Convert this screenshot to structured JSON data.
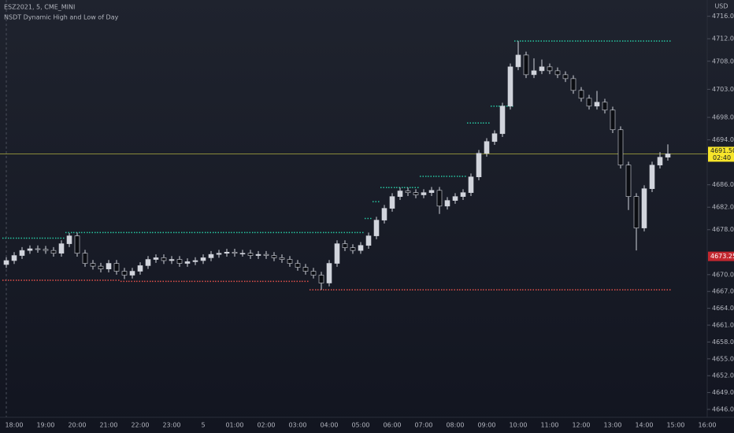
{
  "chart_data": {
    "type": "candlestick",
    "title": "ESZ2021, 5, CME_MINI",
    "subtitle": "NSDT Dynamic High and Low of Day",
    "y_axis_label": "USD",
    "up_color": "#d1d4dc",
    "down_color": "#0b0d12",
    "categories": [
      null,
      "18:00",
      null,
      null,
      null,
      "19:00",
      null,
      null,
      null,
      "20:00",
      null,
      null,
      null,
      "21:00",
      null,
      null,
      null,
      "22:00",
      null,
      null,
      null,
      "23:00",
      null,
      null,
      null,
      "5",
      null,
      null,
      null,
      "01:00",
      null,
      null,
      null,
      "02:00",
      null,
      null,
      null,
      "03:00",
      null,
      null,
      null,
      "04:00",
      null,
      null,
      null,
      "05:00",
      null,
      null,
      null,
      "06:00",
      null,
      null,
      null,
      "07:00",
      null,
      null,
      null,
      "08:00",
      null,
      null,
      null,
      "09:00",
      null,
      null,
      null,
      "10:00",
      null,
      null,
      null,
      "11:00",
      null,
      null,
      null,
      "12:00",
      null,
      null,
      null,
      "13:00",
      null,
      null,
      null,
      "14:00",
      null,
      null,
      null,
      "15:00",
      null,
      null,
      null,
      "16:00"
    ],
    "open": [
      4671.8,
      4672.5,
      4673.4,
      4674.3,
      4674.6,
      4674.5,
      4674.3,
      4673.8,
      4675.5,
      4676.9,
      4673.8,
      4672,
      4671.5,
      4671,
      4672,
      4670.6,
      4669.9,
      4670.6,
      4671.6,
      4672.7,
      4673,
      4672.5,
      4672.7,
      4672,
      4672.3,
      4672.5,
      4673,
      4673.6,
      4673.8,
      4674,
      4673.8,
      4673.8,
      4673.4,
      4673.6,
      4673.4,
      4673,
      4672.7,
      4672,
      4671.3,
      4670.6,
      4669.9,
      4668.5,
      4672,
      4675.5,
      4674.8,
      4674.3,
      4675.2,
      4676.9,
      4679.7,
      4681.8,
      4683.9,
      4684.9,
      4684.6,
      4684.2,
      4684.6,
      4685,
      4682.2,
      4683.2,
      4683.9,
      4684.6,
      4687.4,
      4691.6,
      4693.7,
      4695.1,
      4700,
      4707,
      4709.1,
      4705.6,
      4706.3,
      4707,
      4706.3,
      4705.6,
      4704.9,
      4702.8,
      4701.4,
      4700,
      4700.7,
      4699.3,
      4695.8,
      4689.5,
      4683.9,
      4678.3,
      4685.3,
      4689.5,
      4690.9,
      null,
      null,
      null,
      null,
      null
    ],
    "high": [
      4673.1,
      4674,
      4674.9,
      4675.2,
      4675.2,
      4675.1,
      4674.9,
      4676.1,
      4677.4,
      4677.5,
      4674.4,
      4672.6,
      4672.1,
      4672.6,
      4672.6,
      4671.2,
      4671.2,
      4672.2,
      4673.3,
      4673.6,
      4673.6,
      4673.3,
      4673.3,
      4672.9,
      4673.1,
      4673.6,
      4674.2,
      4674.4,
      4674.6,
      4674.6,
      4674.4,
      4674.4,
      4674.2,
      4674.2,
      4674,
      4673.6,
      4673.3,
      4672.6,
      4671.9,
      4671.2,
      4670.5,
      4672.6,
      4676.1,
      4676.1,
      4675.4,
      4675.8,
      4677.5,
      4680.3,
      4682.4,
      4684.5,
      4685.5,
      4685.5,
      4685.2,
      4685.2,
      4685.6,
      4685.6,
      4683.8,
      4684.5,
      4685.2,
      4688,
      4692.2,
      4694.3,
      4695.7,
      4700.6,
      4707.6,
      4711.6,
      4709.7,
      4708.5,
      4708.3,
      4707.6,
      4706.9,
      4706.2,
      4705.5,
      4703.4,
      4702,
      4702.7,
      4701.3,
      4699.9,
      4696.4,
      4690.1,
      4684.5,
      4685.9,
      4690.1,
      4691.8,
      4693.2,
      null,
      null,
      null,
      null,
      null
    ],
    "low": [
      4671.2,
      4671.9,
      4672.8,
      4673.7,
      4673.9,
      4673.7,
      4673.2,
      4673.2,
      4674.9,
      4673.2,
      4671.4,
      4670.9,
      4670.4,
      4670.4,
      4670,
      4669.2,
      4669.3,
      4670,
      4671,
      4672.1,
      4671.9,
      4671.9,
      4671.4,
      4671.4,
      4671.7,
      4671.9,
      4672.4,
      4673,
      4673.2,
      4673.2,
      4673.2,
      4672.8,
      4672.8,
      4672.8,
      4672.4,
      4672.1,
      4671.4,
      4670.7,
      4670,
      4669.3,
      4667.3,
      4667.9,
      4671.4,
      4674.2,
      4673.7,
      4673.7,
      4674.6,
      4676.3,
      4679.1,
      4681.2,
      4683.3,
      4684,
      4683.6,
      4683.6,
      4684,
      4680.8,
      4681.6,
      4682.6,
      4683.3,
      4684,
      4686.8,
      4691,
      4693.1,
      4694.5,
      4699.4,
      4706.4,
      4705,
      4705,
      4705.7,
      4705.7,
      4705,
      4704.3,
      4702.2,
      4700.8,
      4699.4,
      4699.4,
      4698.7,
      4695.2,
      4688.9,
      4681.5,
      4674.3,
      4677.7,
      4684.7,
      4688.9,
      4690.3,
      null,
      null,
      null,
      null,
      null
    ],
    "close": [
      4672.5,
      4673.4,
      4674.3,
      4674.6,
      4674.5,
      4674.3,
      4673.8,
      4675.5,
      4676.9,
      4673.8,
      4672,
      4671.5,
      4671,
      4672,
      4670.6,
      4669.9,
      4670.6,
      4671.6,
      4672.7,
      4673,
      4672.5,
      4672.7,
      4672,
      4672.3,
      4672.5,
      4673,
      4673.6,
      4673.8,
      4674,
      4673.8,
      4673.8,
      4673.4,
      4673.6,
      4673.4,
      4673,
      4672.7,
      4672,
      4671.3,
      4670.6,
      4669.9,
      4668.5,
      4672,
      4675.5,
      4674.8,
      4674.3,
      4675.2,
      4676.9,
      4679.7,
      4681.8,
      4683.9,
      4684.9,
      4684.6,
      4684.2,
      4684.6,
      4685,
      4682.2,
      4683.2,
      4683.9,
      4684.6,
      4687.4,
      4691.6,
      4693.7,
      4695.1,
      4700,
      4707,
      4709.1,
      4705.6,
      4706.3,
      4707,
      4706.3,
      4705.6,
      4704.9,
      4702.8,
      4701.4,
      4700,
      4700.7,
      4699.3,
      4695.8,
      4689.5,
      4683.9,
      4678.3,
      4685.3,
      4689.5,
      4690.9,
      4691.5,
      null,
      null,
      null,
      null,
      null
    ],
    "series": [
      {
        "color": "#26c6a0",
        "values": [
          4676.5,
          4676.5,
          4676.5,
          4676.5,
          4676.5,
          4676.5,
          4676.5,
          4676.5,
          4677.5,
          4677.5,
          4677.5,
          4677.5,
          4677.5,
          4677.5,
          4677.5,
          4677.5,
          4677.5,
          4677.5,
          4677.5,
          4677.5,
          4677.5,
          4677.5,
          4677.5,
          4677.5,
          4677.5,
          4677.5,
          4677.5,
          4677.5,
          4677.5,
          4677.5,
          4677.5,
          4677.5,
          4677.5,
          4677.5,
          4677.5,
          4677.5,
          4677.5,
          4677.5,
          4677.5,
          4677.5,
          4677.5,
          4677.5,
          4677.5,
          4677.5,
          4677.5,
          4677.5,
          4680,
          4683,
          4685.5,
          4685.5,
          4685.5,
          4685.5,
          4685.5,
          4687.5,
          4687.5,
          4687.5,
          4687.5,
          4687.5,
          4687.5,
          4697,
          4697,
          4697,
          4700,
          4700,
          4700,
          4711.6,
          4711.6,
          4711.6,
          4711.6,
          4711.6,
          4711.6,
          4711.6,
          4711.6,
          4711.6,
          4711.6,
          4711.6,
          4711.6,
          4711.6,
          4711.6,
          4711.6,
          4711.6,
          4711.6,
          4711.6,
          4711.6,
          4711.6,
          null,
          null,
          null,
          null,
          null
        ]
      },
      {
        "color": "#e0504a",
        "values": [
          4669,
          4669,
          4669,
          4669,
          4669,
          4669,
          4669,
          4669,
          4669,
          4669,
          4669,
          4669,
          4669,
          4669,
          4669,
          4668.8,
          4668.8,
          4668.8,
          4668.8,
          4668.8,
          4668.8,
          4668.8,
          4668.8,
          4668.8,
          4668.8,
          4668.8,
          4668.8,
          4668.8,
          4668.8,
          4668.8,
          4668.8,
          4668.8,
          4668.8,
          4668.8,
          4668.8,
          4668.8,
          4668.8,
          4668.8,
          4668.8,
          4667.3,
          4667.3,
          4667.3,
          4667.3,
          4667.3,
          4667.3,
          4667.3,
          4667.3,
          4667.3,
          4667.3,
          4667.3,
          4667.3,
          4667.3,
          4667.3,
          4667.3,
          4667.3,
          4667.3,
          4667.3,
          4667.3,
          4667.3,
          4667.3,
          4667.3,
          4667.3,
          4667.3,
          4667.3,
          4667.3,
          4667.3,
          4667.3,
          4667.3,
          4667.3,
          4667.3,
          4667.3,
          4667.3,
          4667.3,
          4667.3,
          4667.3,
          4667.3,
          4667.3,
          4667.3,
          4667.3,
          4667.3,
          4667.3,
          4667.3,
          4667.3,
          4667.3,
          4667.3,
          null,
          null,
          null,
          null,
          null
        ]
      }
    ],
    "ylim": [
      4644.6,
      4718.9
    ],
    "yticks": [
      {
        "value": 4716,
        "label": "4716.00"
      },
      {
        "value": 4712,
        "label": "4712.00"
      },
      {
        "value": 4708,
        "label": "4708.00"
      },
      {
        "value": 4703,
        "label": "4703.00"
      },
      {
        "value": 4698,
        "label": "4698.00"
      },
      {
        "value": 4694,
        "label": "4694.00"
      },
      {
        "value": 4686,
        "label": "4686.00"
      },
      {
        "value": 4682,
        "label": "4682.00"
      },
      {
        "value": 4678,
        "label": "4678.00"
      },
      {
        "value": 4670,
        "label": "4670.00"
      },
      {
        "value": 4667,
        "label": "4667.00"
      },
      {
        "value": 4664,
        "label": "4664.00"
      },
      {
        "value": 4661,
        "label": "4661.00"
      },
      {
        "value": 4658,
        "label": "4658.00"
      },
      {
        "value": 4655,
        "label": "4655.00"
      },
      {
        "value": 4652,
        "label": "4652.00"
      },
      {
        "value": 4649,
        "label": "4649.00"
      },
      {
        "value": 4646,
        "label": "4646.00"
      }
    ],
    "last_price": {
      "value": 4691.5,
      "label": "4691.50",
      "countdown": "02:40",
      "color": "#f7e52b"
    },
    "alert": {
      "value": 4673.25,
      "label": "4673.25",
      "color": "#c2272f"
    }
  }
}
